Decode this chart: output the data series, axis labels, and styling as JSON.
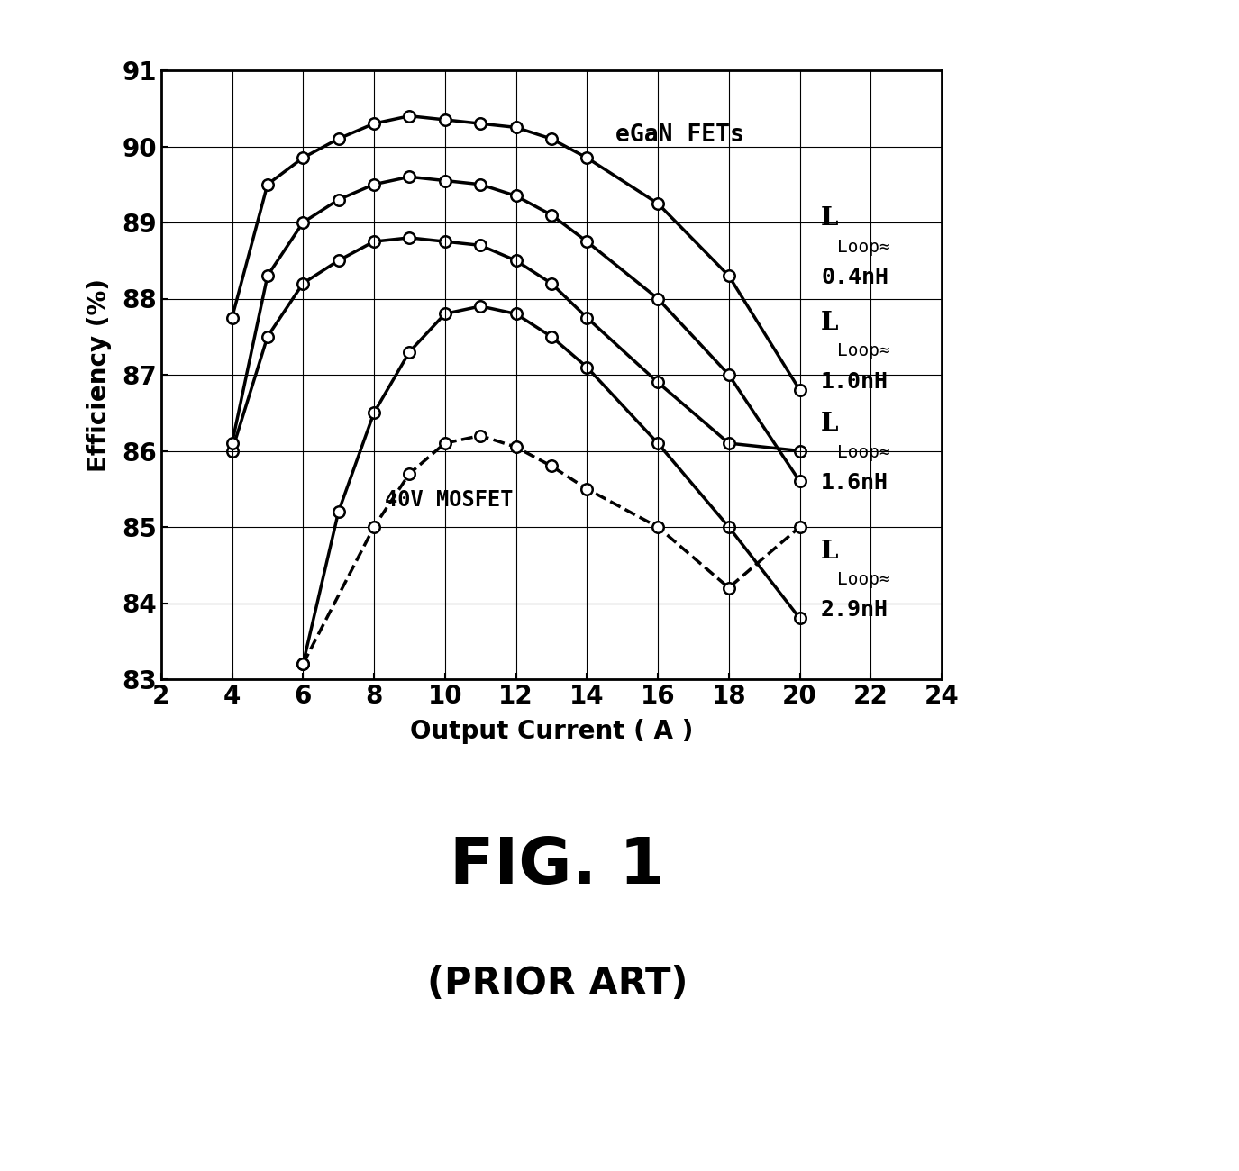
{
  "title": "FIG. 1",
  "subtitle": "(PRIOR ART)",
  "xlabel": "Output Current ( A )",
  "ylabel": "Efficiency (%)",
  "xlim": [
    2,
    24
  ],
  "ylim": [
    83,
    91
  ],
  "xticks": [
    2,
    4,
    6,
    8,
    10,
    12,
    14,
    16,
    18,
    20,
    22,
    24
  ],
  "yticks": [
    83,
    84,
    85,
    86,
    87,
    88,
    89,
    90,
    91
  ],
  "series": [
    {
      "label": "0.4nH",
      "x": [
        4,
        5,
        6,
        7,
        8,
        9,
        10,
        11,
        12,
        13,
        14,
        16,
        18,
        20
      ],
      "y": [
        87.75,
        89.5,
        89.85,
        90.1,
        90.3,
        90.4,
        90.35,
        90.3,
        90.25,
        90.1,
        89.85,
        89.25,
        88.3,
        86.8
      ],
      "linestyle": "solid",
      "linewidth": 2.5,
      "marker": "o",
      "markersize": 9,
      "color": "#000000",
      "markerfacecolor": "#ffffff",
      "zorder": 4
    },
    {
      "label": "1.0nH",
      "x": [
        4,
        5,
        6,
        7,
        8,
        9,
        10,
        11,
        12,
        13,
        14,
        16,
        18,
        20
      ],
      "y": [
        86.1,
        88.3,
        89.0,
        89.3,
        89.5,
        89.6,
        89.55,
        89.5,
        89.35,
        89.1,
        88.75,
        88.0,
        87.0,
        85.6
      ],
      "linestyle": "solid",
      "linewidth": 2.5,
      "marker": "o",
      "markersize": 9,
      "color": "#000000",
      "markerfacecolor": "#ffffff",
      "zorder": 3
    },
    {
      "label": "1.6nH",
      "x": [
        4,
        5,
        6,
        7,
        8,
        9,
        10,
        11,
        12,
        13,
        14,
        16,
        18,
        20
      ],
      "y": [
        86.0,
        87.5,
        88.2,
        88.5,
        88.75,
        88.8,
        88.75,
        88.7,
        88.5,
        88.2,
        87.75,
        86.9,
        86.1,
        86.0
      ],
      "linestyle": "solid",
      "linewidth": 2.5,
      "marker": "o",
      "markersize": 9,
      "color": "#000000",
      "markerfacecolor": "#ffffff",
      "zorder": 2
    },
    {
      "label": "2.9nH",
      "x": [
        6,
        7,
        8,
        9,
        10,
        11,
        12,
        13,
        14,
        16,
        18,
        20
      ],
      "y": [
        83.2,
        85.2,
        86.5,
        87.3,
        87.8,
        87.9,
        87.8,
        87.5,
        87.1,
        86.1,
        85.0,
        83.8
      ],
      "linestyle": "solid",
      "linewidth": 2.5,
      "marker": "o",
      "markersize": 9,
      "color": "#000000",
      "markerfacecolor": "#ffffff",
      "zorder": 1
    },
    {
      "label": "40V MOSFET",
      "x": [
        6,
        8,
        9,
        10,
        11,
        12,
        13,
        14,
        16,
        18,
        20
      ],
      "y": [
        83.2,
        85.0,
        85.7,
        86.1,
        86.2,
        86.05,
        85.8,
        85.5,
        85.0,
        84.2,
        85.0
      ],
      "linestyle": "dashed",
      "linewidth": 2.5,
      "marker": "o",
      "markersize": 9,
      "color": "#000000",
      "markerfacecolor": "#ffffff",
      "zorder": 5
    }
  ],
  "background_color": "#ffffff",
  "title_fontsize": 52,
  "subtitle_fontsize": 30,
  "axis_label_fontsize": 20,
  "tick_fontsize": 20,
  "annotation_fontsize": 17
}
